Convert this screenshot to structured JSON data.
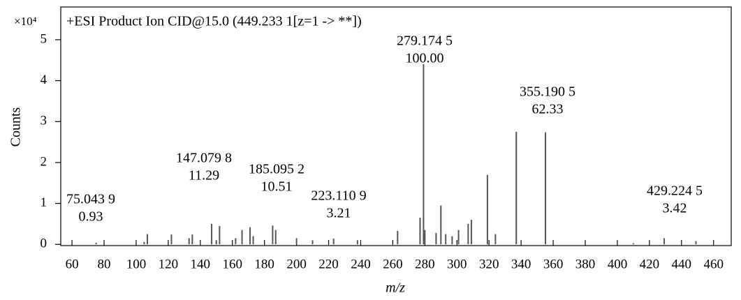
{
  "chart_data": {
    "type": "bar",
    "title": "+ESI Product Ion CID@15.0 (449.233 1[z=1 -> **])",
    "y_scale_label": "×10⁴",
    "y_label": "Counts",
    "x_label": "m/z",
    "x": [
      75.04,
      105,
      107,
      122,
      133,
      135,
      147.08,
      150,
      152,
      162,
      166,
      171,
      173,
      185.1,
      187,
      200,
      210,
      223.11,
      238,
      263,
      277,
      279.17,
      280,
      287,
      290,
      293,
      297,
      301,
      307,
      309,
      319,
      324,
      337,
      355.19,
      410,
      429.22,
      449
    ],
    "values": [
      0.04,
      0.06,
      0.25,
      0.24,
      0.15,
      0.24,
      0.5,
      0.1,
      0.45,
      0.15,
      0.35,
      0.42,
      0.2,
      0.46,
      0.35,
      0.15,
      0.1,
      0.14,
      0.1,
      0.33,
      0.65,
      4.4,
      0.35,
      0.28,
      0.95,
      0.25,
      0.2,
      0.35,
      0.5,
      0.6,
      1.7,
      0.25,
      2.75,
      2.74,
      0.03,
      0.15,
      0.08
    ],
    "color": "#555555",
    "annotations": [
      {
        "mz": "75.043 9",
        "percent": "0.93"
      },
      {
        "mz": "147.079 8",
        "percent": "11.29"
      },
      {
        "mz": "185.095 2",
        "percent": "10.51"
      },
      {
        "mz": "223.110 9",
        "percent": "3.21"
      },
      {
        "mz": "279.174 5",
        "percent": "100.00"
      },
      {
        "mz": "355.190 5",
        "percent": "62.33"
      },
      {
        "mz": "429.224 5",
        "percent": "3.42"
      }
    ],
    "xlim": [
      53,
      471
    ],
    "ylim": [
      -0.03,
      5.8
    ],
    "xticks": [
      60,
      80,
      100,
      120,
      140,
      160,
      180,
      200,
      220,
      240,
      260,
      280,
      300,
      320,
      340,
      360,
      380,
      400,
      420,
      440,
      460
    ],
    "yticks": [
      0,
      1,
      2,
      3,
      4,
      5
    ]
  }
}
